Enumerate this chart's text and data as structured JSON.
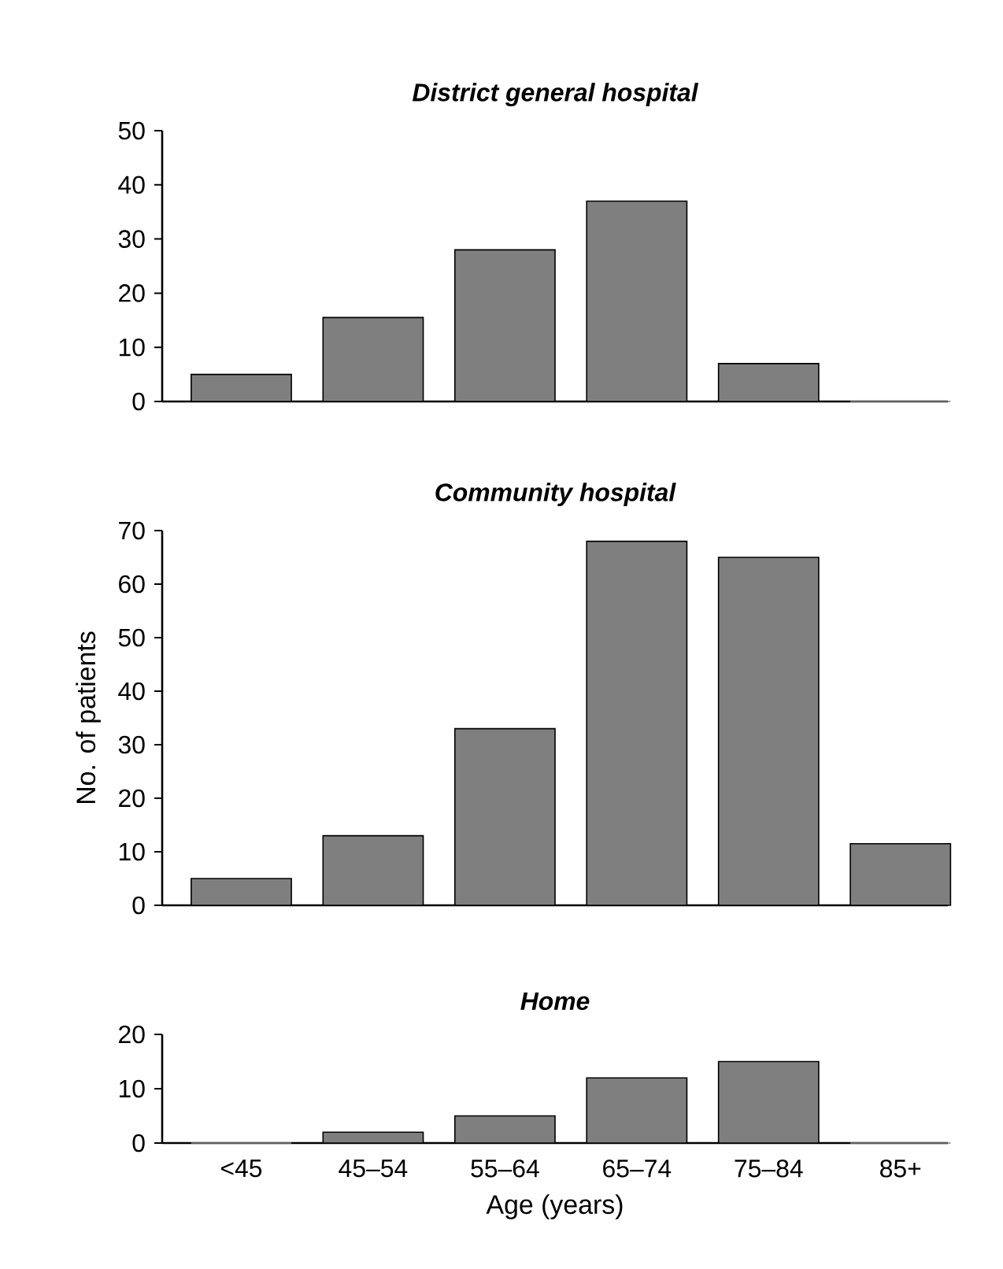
{
  "chart_data": [
    {
      "type": "bar",
      "title": "District general hospital",
      "categories": [
        null,
        null,
        null,
        null,
        null,
        null
      ],
      "values": [
        5,
        15.5,
        28,
        37,
        7,
        0
      ],
      "color": "#7f7f7f",
      "ylim": [
        0,
        50
      ],
      "yticks": [
        0,
        10,
        20,
        30,
        40,
        50
      ],
      "tick_labels": "y"
    },
    {
      "type": "bar",
      "title": "Community hospital",
      "ylabel": "No. of patients",
      "categories": [
        null,
        null,
        null,
        null,
        null,
        null
      ],
      "values": [
        5,
        13,
        33,
        68,
        65,
        11.5
      ],
      "color": "#7f7f7f",
      "ylim": [
        0,
        70
      ],
      "yticks": [
        0,
        10,
        20,
        30,
        40,
        50,
        60,
        70
      ],
      "tick_labels": "y"
    },
    {
      "type": "bar",
      "title": "Home",
      "xlabel": "Age (years)",
      "categories": [
        "<45",
        "45–54",
        "55–64",
        "65–74",
        "75–84",
        "85+"
      ],
      "values": [
        0,
        2,
        5,
        12,
        15,
        0
      ],
      "color": "#7f7f7f",
      "ylim": [
        0,
        20
      ],
      "yticks": [
        0,
        10,
        20
      ]
    }
  ]
}
